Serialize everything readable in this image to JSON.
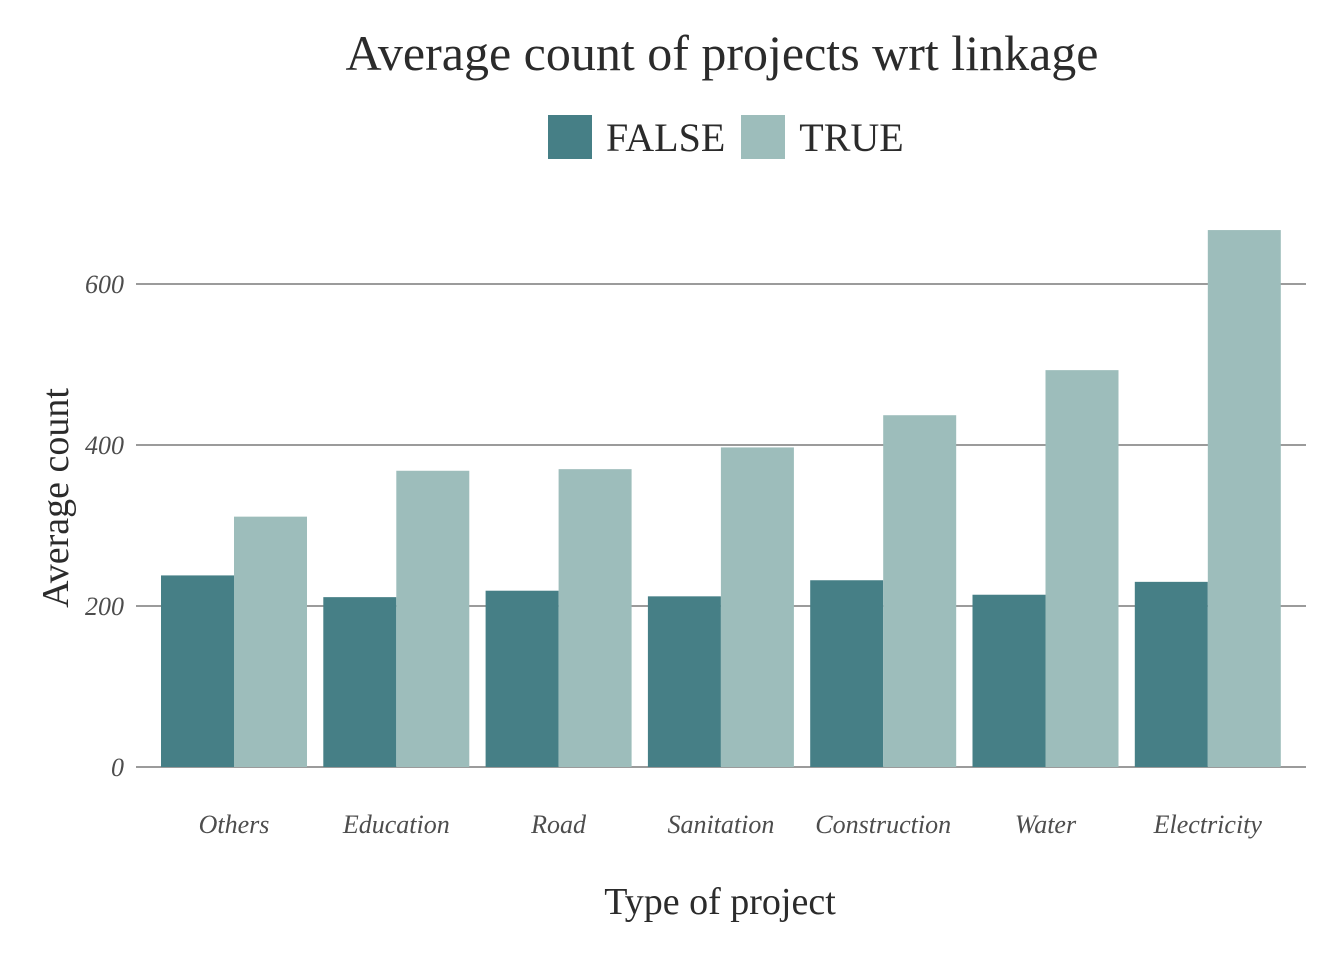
{
  "chart_data": {
    "type": "bar",
    "title": "Average count of projects wrt linkage",
    "xlabel": "Type of project",
    "ylabel": "Average count",
    "categories": [
      "Others",
      "Education",
      "Road",
      "Sanitation",
      "Construction",
      "Water",
      "Electricity"
    ],
    "series": [
      {
        "name": "FALSE",
        "color": "#467f86",
        "values": [
          238,
          211,
          219,
          212,
          232,
          214,
          230
        ]
      },
      {
        "name": "TRUE",
        "color": "#9dbdbb",
        "values": [
          311,
          368,
          370,
          397,
          437,
          493,
          667
        ]
      }
    ],
    "ylim": [
      0,
      700
    ],
    "yticks": [
      0,
      200,
      400,
      600
    ],
    "grid": true,
    "legend_position": "top"
  }
}
